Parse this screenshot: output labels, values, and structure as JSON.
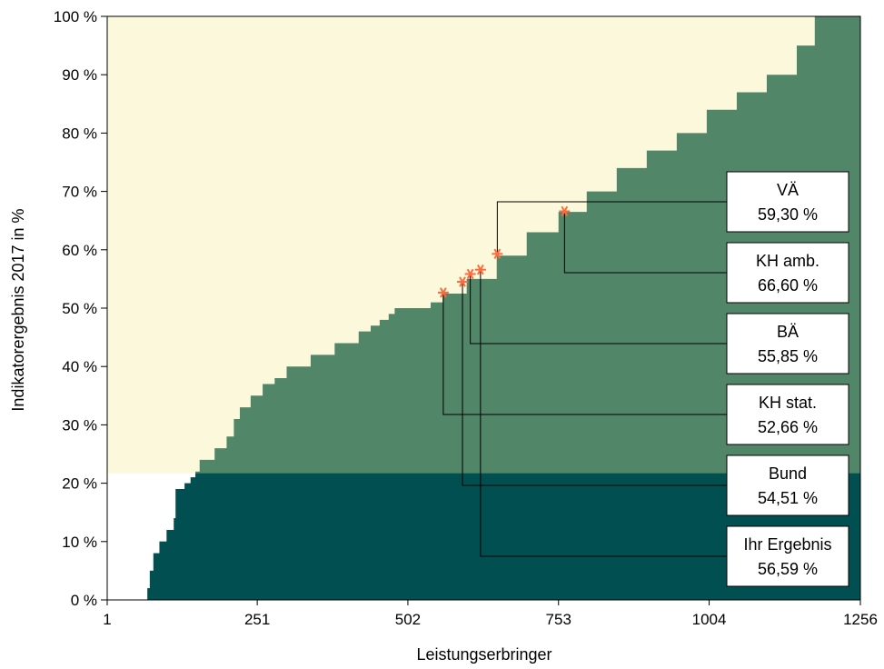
{
  "chart_data": {
    "type": "area",
    "ylabel": "Indikatorergebnis 2017 in %",
    "xlabel": "Leistungserbringer",
    "xlim": [
      1,
      1256
    ],
    "ylim": [
      0,
      100
    ],
    "x_ticks": [
      {
        "value": 1,
        "label": "1"
      },
      {
        "value": 251,
        "label": "251"
      },
      {
        "value": 502,
        "label": "502"
      },
      {
        "value": 753,
        "label": "753"
      },
      {
        "value": 1004,
        "label": "1004"
      },
      {
        "value": 1256,
        "label": "1256"
      }
    ],
    "y_ticks": [
      {
        "value": 0,
        "label": "0 %"
      },
      {
        "value": 10,
        "label": "10 %"
      },
      {
        "value": 20,
        "label": "20 %"
      },
      {
        "value": 30,
        "label": "30 %"
      },
      {
        "value": 40,
        "label": "40 %"
      },
      {
        "value": 50,
        "label": "50 %"
      },
      {
        "value": 60,
        "label": "60 %"
      },
      {
        "value": 70,
        "label": "70 %"
      },
      {
        "value": 80,
        "label": "80 %"
      },
      {
        "value": 90,
        "label": "90 %"
      },
      {
        "value": 100,
        "label": "100 %"
      }
    ],
    "reference_threshold": 21.7,
    "curve": {
      "x": [
        65,
        68,
        72,
        78,
        88,
        100,
        112,
        115,
        130,
        140,
        148,
        155,
        180,
        200,
        212,
        222,
        240,
        260,
        280,
        300,
        340,
        380,
        420,
        440,
        455,
        470,
        480,
        490,
        502,
        540,
        560,
        600,
        650,
        700,
        753,
        800,
        850,
        900,
        950,
        1000,
        1050,
        1100,
        1150,
        1180,
        1256
      ],
      "y": [
        0,
        2,
        5,
        8,
        10,
        12,
        14,
        19,
        20,
        21,
        22,
        24,
        26,
        28,
        31,
        33,
        35,
        37,
        38,
        40,
        42,
        44,
        46,
        47,
        48,
        49,
        50,
        50,
        50,
        51,
        52.5,
        55,
        59,
        63,
        66.5,
        70,
        74,
        77,
        80,
        84,
        87,
        90,
        95,
        100,
        100
      ]
    },
    "markers": [
      {
        "label": "VÄ",
        "value_text": "59,30 %",
        "x": 651,
        "y": 59.3
      },
      {
        "label": "KH amb.",
        "value_text": "66,60 %",
        "x": 763,
        "y": 66.6
      },
      {
        "label": "BÄ",
        "value_text": "55,85 %",
        "x": 606,
        "y": 55.85
      },
      {
        "label": "KH stat.",
        "value_text": "52,66 %",
        "x": 561,
        "y": 52.66
      },
      {
        "label": "Bund",
        "value_text": "54,51 %",
        "x": 593,
        "y": 54.51
      },
      {
        "label": "Ihr Ergebnis",
        "value_text": "56,59 %",
        "x": 623,
        "y": 56.59
      }
    ],
    "colors": {
      "upper_area": "#fcf8dc",
      "curve_area": "#528668",
      "below_threshold_area": "#024f51",
      "marker": "#ff6a3d",
      "leader_line": "#000000"
    }
  }
}
